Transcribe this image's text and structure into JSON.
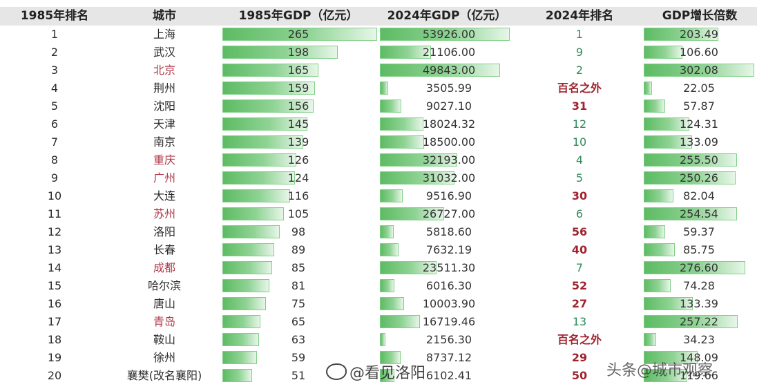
{
  "headers": [
    "1985年排名",
    "城市",
    "1985年GDP（亿元）",
    "2024年GDP（亿元）",
    "2024年排名",
    "GDP增长倍数"
  ],
  "rows": [
    {
      "r85": "1",
      "city": "上海",
      "g85": "265",
      "g85_val": 265,
      "g24": "53926.00",
      "g24_val": 53926,
      "r24": "1",
      "mult": "203.49",
      "mult_val": 203.49,
      "city_hl": false,
      "r24_style": "top"
    },
    {
      "r85": "2",
      "city": "武汉",
      "g85": "198",
      "g85_val": 198,
      "g24": "21106.00",
      "g24_val": 21106,
      "r24": "9",
      "mult": "106.60",
      "mult_val": 106.6,
      "city_hl": false,
      "r24_style": "top"
    },
    {
      "r85": "3",
      "city": "北京",
      "g85": "165",
      "g85_val": 165,
      "g24": "49843.00",
      "g24_val": 49843,
      "r24": "2",
      "mult": "302.08",
      "mult_val": 302.08,
      "city_hl": true,
      "r24_style": "top"
    },
    {
      "r85": "4",
      "city": "荆州",
      "g85": "159",
      "g85_val": 159,
      "g24": "3505.99",
      "g24_val": 3505.99,
      "r24": "百名之外",
      "mult": "22.05",
      "mult_val": 22.05,
      "city_hl": false,
      "r24_style": "low"
    },
    {
      "r85": "5",
      "city": "沈阳",
      "g85": "156",
      "g85_val": 156,
      "g24": "9027.10",
      "g24_val": 9027.1,
      "r24": "31",
      "mult": "57.87",
      "mult_val": 57.87,
      "city_hl": false,
      "r24_style": "low"
    },
    {
      "r85": "6",
      "city": "天津",
      "g85": "145",
      "g85_val": 145,
      "g24": "18024.32",
      "g24_val": 18024.32,
      "r24": "12",
      "mult": "124.31",
      "mult_val": 124.31,
      "city_hl": false,
      "r24_style": "top"
    },
    {
      "r85": "7",
      "city": "南京",
      "g85": "139",
      "g85_val": 139,
      "g24": "18500.00",
      "g24_val": 18500,
      "r24": "10",
      "mult": "133.09",
      "mult_val": 133.09,
      "city_hl": false,
      "r24_style": "top"
    },
    {
      "r85": "8",
      "city": "重庆",
      "g85": "126",
      "g85_val": 126,
      "g24": "32193.00",
      "g24_val": 32193,
      "r24": "4",
      "mult": "255.50",
      "mult_val": 255.5,
      "city_hl": true,
      "r24_style": "top"
    },
    {
      "r85": "9",
      "city": "广州",
      "g85": "124",
      "g85_val": 124,
      "g24": "31032.00",
      "g24_val": 31032,
      "r24": "5",
      "mult": "250.26",
      "mult_val": 250.26,
      "city_hl": true,
      "r24_style": "top"
    },
    {
      "r85": "10",
      "city": "大连",
      "g85": "116",
      "g85_val": 116,
      "g24": "9516.90",
      "g24_val": 9516.9,
      "r24": "30",
      "mult": "82.04",
      "mult_val": 82.04,
      "city_hl": false,
      "r24_style": "low"
    },
    {
      "r85": "11",
      "city": "苏州",
      "g85": "105",
      "g85_val": 105,
      "g24": "26727.00",
      "g24_val": 26727,
      "r24": "6",
      "mult": "254.54",
      "mult_val": 254.54,
      "city_hl": true,
      "r24_style": "top"
    },
    {
      "r85": "12",
      "city": "洛阳",
      "g85": "98",
      "g85_val": 98,
      "g24": "5818.60",
      "g24_val": 5818.6,
      "r24": "56",
      "mult": "59.37",
      "mult_val": 59.37,
      "city_hl": false,
      "r24_style": "low"
    },
    {
      "r85": "13",
      "city": "长春",
      "g85": "89",
      "g85_val": 89,
      "g24": "7632.19",
      "g24_val": 7632.19,
      "r24": "40",
      "mult": "85.75",
      "mult_val": 85.75,
      "city_hl": false,
      "r24_style": "low"
    },
    {
      "r85": "14",
      "city": "成都",
      "g85": "85",
      "g85_val": 85,
      "g24": "23511.30",
      "g24_val": 23511.3,
      "r24": "7",
      "mult": "276.60",
      "mult_val": 276.6,
      "city_hl": true,
      "r24_style": "top"
    },
    {
      "r85": "15",
      "city": "哈尔滨",
      "g85": "81",
      "g85_val": 81,
      "g24": "6016.30",
      "g24_val": 6016.3,
      "r24": "52",
      "mult": "74.28",
      "mult_val": 74.28,
      "city_hl": false,
      "r24_style": "low"
    },
    {
      "r85": "16",
      "city": "唐山",
      "g85": "75",
      "g85_val": 75,
      "g24": "10003.90",
      "g24_val": 10003.9,
      "r24": "27",
      "mult": "133.39",
      "mult_val": 133.39,
      "city_hl": false,
      "r24_style": "low"
    },
    {
      "r85": "17",
      "city": "青岛",
      "g85": "65",
      "g85_val": 65,
      "g24": "16719.46",
      "g24_val": 16719.46,
      "r24": "13",
      "mult": "257.22",
      "mult_val": 257.22,
      "city_hl": true,
      "r24_style": "top"
    },
    {
      "r85": "18",
      "city": "鞍山",
      "g85": "63",
      "g85_val": 63,
      "g24": "2156.30",
      "g24_val": 2156.3,
      "r24": "百名之外",
      "mult": "34.23",
      "mult_val": 34.23,
      "city_hl": false,
      "r24_style": "low"
    },
    {
      "r85": "19",
      "city": "徐州",
      "g85": "59",
      "g85_val": 59,
      "g24": "8737.12",
      "g24_val": 8737.12,
      "r24": "29",
      "mult": "148.09",
      "mult_val": 148.09,
      "city_hl": false,
      "r24_style": "low"
    },
    {
      "r85": "20",
      "city": "襄樊(改名襄阳)",
      "g85": "51",
      "g85_val": 51,
      "g24": "6102.41",
      "g24_val": 6102.41,
      "r24": "50",
      "mult": "119.66",
      "mult_val": 119.66,
      "city_hl": false,
      "r24_style": "low"
    }
  ],
  "scales": {
    "g85_max": 265,
    "g24_max": 53926,
    "mult_max": 302.08
  },
  "watermarks": {
    "weibo": "@看见洛阳",
    "toutiao": "头条@城市观察"
  },
  "colors": {
    "bar": "#6cc273",
    "city_highlight": "#b03a4a",
    "rank_top": "#2f8a5b",
    "rank_low": "#a0232f",
    "header_bg": "#e6e6e6"
  }
}
